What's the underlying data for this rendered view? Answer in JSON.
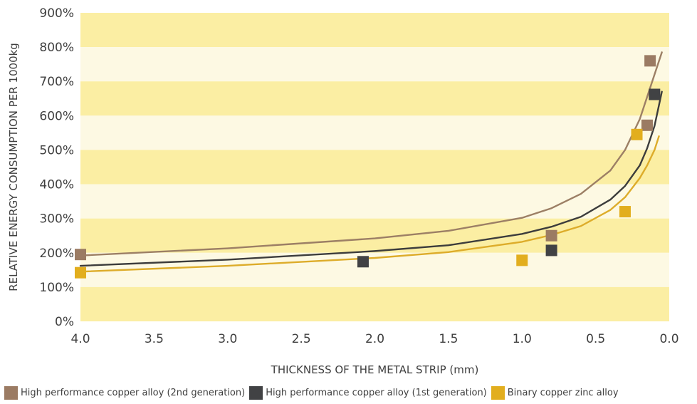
{
  "chart_data": {
    "type": "scatter",
    "title": "",
    "xlabel": "THICKNESS OF THE METAL STRIP (mm)",
    "ylabel": "RELATIVE ENERGY CONSUMPTION PER 1000kg",
    "xlim": [
      4.0,
      0.0
    ],
    "x_reversed": true,
    "ylim": [
      0,
      900
    ],
    "x_ticks": [
      "4.0",
      "3.5",
      "3.0",
      "2.5",
      "2.0",
      "1.5",
      "1.0",
      "0.5",
      "0.0"
    ],
    "y_ticks": [
      "0%",
      "100%",
      "200%",
      "300%",
      "400%",
      "500%",
      "600%",
      "700%",
      "800%",
      "900%"
    ],
    "band_colors": [
      "#fbeea3",
      "#fdf9e3"
    ],
    "grid": false,
    "legend_position": "bottom",
    "series": [
      {
        "name": "High performance copper alloy (2nd generation)",
        "color": "#9b7b63",
        "line_color": "#9c7f65",
        "points": [
          [
            4.0,
            195
          ],
          [
            0.8,
            250
          ],
          [
            0.15,
            572
          ],
          [
            0.13,
            760
          ]
        ],
        "trend": [
          [
            4.0,
            192
          ],
          [
            3.0,
            213
          ],
          [
            2.0,
            242
          ],
          [
            1.5,
            264
          ],
          [
            1.0,
            302
          ],
          [
            0.8,
            330
          ],
          [
            0.6,
            372
          ],
          [
            0.4,
            440
          ],
          [
            0.3,
            500
          ],
          [
            0.2,
            590
          ],
          [
            0.15,
            655
          ],
          [
            0.1,
            720
          ],
          [
            0.05,
            785
          ]
        ]
      },
      {
        "name": "High performance copper alloy (1st generation)",
        "color": "#414244",
        "line_color": "#3c3c3c",
        "points": [
          [
            2.08,
            174
          ],
          [
            0.8,
            207
          ],
          [
            0.1,
            662
          ]
        ],
        "trend": [
          [
            4.0,
            162
          ],
          [
            3.0,
            180
          ],
          [
            2.0,
            205
          ],
          [
            1.5,
            222
          ],
          [
            1.0,
            255
          ],
          [
            0.8,
            276
          ],
          [
            0.6,
            305
          ],
          [
            0.4,
            355
          ],
          [
            0.3,
            395
          ],
          [
            0.2,
            455
          ],
          [
            0.15,
            505
          ],
          [
            0.1,
            570
          ],
          [
            0.05,
            670
          ]
        ]
      },
      {
        "name": "Binary copper zinc alloy",
        "color": "#e2ae1e",
        "line_color": "#ddac2a",
        "points": [
          [
            4.0,
            142
          ],
          [
            1.0,
            178
          ],
          [
            0.3,
            320
          ],
          [
            0.22,
            545
          ]
        ],
        "trend": [
          [
            4.0,
            145
          ],
          [
            3.0,
            162
          ],
          [
            2.0,
            185
          ],
          [
            1.5,
            202
          ],
          [
            1.0,
            232
          ],
          [
            0.8,
            252
          ],
          [
            0.6,
            278
          ],
          [
            0.4,
            325
          ],
          [
            0.3,
            362
          ],
          [
            0.2,
            418
          ],
          [
            0.15,
            455
          ],
          [
            0.1,
            500
          ],
          [
            0.07,
            540
          ]
        ]
      }
    ]
  },
  "legend": [
    {
      "label": "High performance copper alloy (2nd generation)",
      "color": "#9b7b63"
    },
    {
      "label": "High performance copper alloy (1st generation)",
      "color": "#414244"
    },
    {
      "label": "Binary copper zinc alloy",
      "color": "#e2ae1e"
    }
  ]
}
